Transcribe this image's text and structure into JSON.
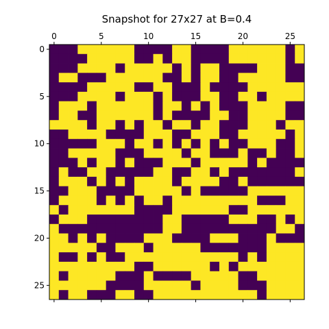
{
  "chart_data": {
    "type": "heatmap",
    "title": "Snapshot for 27x27 at B=0.4",
    "rows": 27,
    "cols": 27,
    "colors": {
      "low": "#440154",
      "high": "#fde725"
    },
    "xticks": [
      0,
      5,
      10,
      15,
      20,
      25
    ],
    "yticks": [
      0,
      5,
      10,
      15,
      20,
      25
    ],
    "x_tick_labels_position": "top",
    "y_tick_labels_position": "left",
    "grid": false,
    "matrix": [
      "000111111000011000011111101",
      "000011111001011000011111101",
      "000111101111101011000011100",
      "011000111111001011001111100",
      "000011111001100010000111111",
      "000111101110100011001101111",
      "011101111110110101000111100",
      "011001111110100001100111100",
      "111101101011011011000111011",
      "001111000011100111001111101",
      "000001110110101010100111001",
      "001111100011110110001001001",
      "000101101000111011111010000",
      "010011000001100110100000001",
      "011101010111101111001000000",
      "001110000111110100000111111",
      "011110101011011111111100011",
      "101111111000011111100111111",
      "011100000000110000011100101",
      "100000000000110000000000110",
      "110101000011100001110001000",
      "111110011101111100000001111",
      "100101001111111111110101111",
      "111111111001111110101111111",
      "101111100010000111110011111",
      "111111000011111011110001111",
      "101100011001111111111101111"
    ]
  }
}
